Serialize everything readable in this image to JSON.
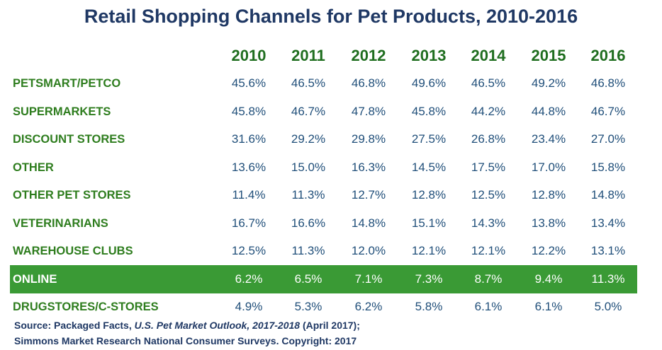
{
  "title": "Retail Shopping Channels for Pet Products, 2010-2016",
  "source": {
    "line1_prefix": "Source:  Packaged Facts, ",
    "line1_title": "U.S. Pet Market Outlook, 2017-2018",
    "line1_suffix": " (April 2017);",
    "line2": "Simmons Market Research National Consumer Surveys.  Copyright: 2017"
  },
  "colors": {
    "title": "#1f3864",
    "year_header": "#1f6e1f",
    "row_label": "#2e7d1e",
    "value": "#1f4e79",
    "highlight_background": "#3a9a35",
    "highlight_text": "#ffffff"
  },
  "chart_data": {
    "type": "table",
    "title": "Retail Shopping Channels for Pet Products, 2010-2016",
    "columns": [
      "2010",
      "2011",
      "2012",
      "2013",
      "2014",
      "2015",
      "2016"
    ],
    "highlighted_row": "ONLINE",
    "rows": [
      {
        "label": "PETSMART/PETCO",
        "values": [
          "45.6%",
          "46.5%",
          "46.8%",
          "49.6%",
          "46.5%",
          "49.2%",
          "46.8%"
        ]
      },
      {
        "label": "SUPERMARKETS",
        "values": [
          "45.8%",
          "46.7%",
          "47.8%",
          "45.8%",
          "44.2%",
          "44.8%",
          "46.7%"
        ]
      },
      {
        "label": "DISCOUNT STORES",
        "values": [
          "31.6%",
          "29.2%",
          "29.8%",
          "27.5%",
          "26.8%",
          "23.4%",
          "27.0%"
        ]
      },
      {
        "label": "OTHER",
        "values": [
          "13.6%",
          "15.0%",
          "16.3%",
          "14.5%",
          "17.5%",
          "17.0%",
          "15.8%"
        ]
      },
      {
        "label": "OTHER PET STORES",
        "values": [
          "11.4%",
          "11.3%",
          "12.7%",
          "12.8%",
          "12.5%",
          "12.8%",
          "14.8%"
        ]
      },
      {
        "label": "VETERINARIANS",
        "values": [
          "16.7%",
          "16.6%",
          "14.8%",
          "15.1%",
          "14.3%",
          "13.8%",
          "13.4%"
        ]
      },
      {
        "label": "WAREHOUSE CLUBS",
        "values": [
          "12.5%",
          "11.3%",
          "12.0%",
          "12.1%",
          "12.1%",
          "12.2%",
          "13.1%"
        ]
      },
      {
        "label": "ONLINE",
        "values": [
          "6.2%",
          "6.5%",
          "7.1%",
          "7.3%",
          "8.7%",
          "9.4%",
          "11.3%"
        ]
      },
      {
        "label": "DRUGSTORES/C-STORES",
        "values": [
          "4.9%",
          "5.3%",
          "6.2%",
          "5.8%",
          "6.1%",
          "6.1%",
          "5.0%"
        ]
      }
    ]
  }
}
